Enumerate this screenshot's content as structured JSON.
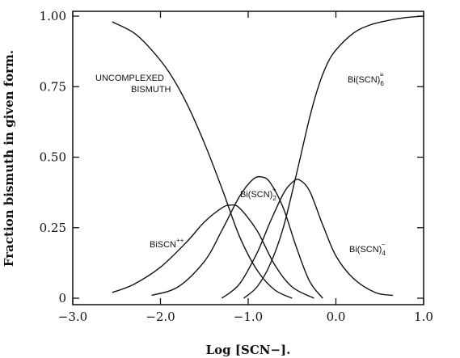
{
  "chart_data": {
    "type": "line",
    "xlabel": "Log [SCN−].",
    "ylabel": "Fraction bismuth in given form.",
    "xlim": [
      -3.0,
      1.0
    ],
    "ylim": [
      0,
      1.02
    ],
    "x_ticks": [
      {
        "value": -3.0,
        "label": "−3.0"
      },
      {
        "value": -2.0,
        "label": "−2.0"
      },
      {
        "value": -1.0,
        "label": "−1.0"
      },
      {
        "value": 0.0,
        "label": "0.0"
      },
      {
        "value": 1.0,
        "label": "1.0"
      }
    ],
    "y_ticks": [
      {
        "value": 0,
        "label": "0"
      },
      {
        "value": 0.25,
        "label": "0.25"
      },
      {
        "value": 0.5,
        "label": "0.50"
      },
      {
        "value": 0.75,
        "label": "0.75"
      },
      {
        "value": 1.0,
        "label": "1.00"
      }
    ],
    "series": [
      {
        "name": "UNCOMPLEXED BISMUTH",
        "x": [
          -2.55,
          -2.3,
          -2.1,
          -1.9,
          -1.7,
          -1.5,
          -1.3,
          -1.1,
          -0.9,
          -0.7,
          -0.5
        ],
        "y": [
          0.98,
          0.94,
          0.88,
          0.8,
          0.69,
          0.55,
          0.39,
          0.22,
          0.1,
          0.03,
          0.0
        ]
      },
      {
        "name": "BiSCN++",
        "x": [
          -2.55,
          -2.3,
          -2.0,
          -1.7,
          -1.5,
          -1.3,
          -1.2,
          -1.1,
          -0.9,
          -0.7,
          -0.5,
          -0.25
        ],
        "y": [
          0.02,
          0.05,
          0.11,
          0.2,
          0.27,
          0.32,
          0.33,
          0.32,
          0.24,
          0.12,
          0.04,
          0.0
        ]
      },
      {
        "name": "Bi(SCN)2+",
        "x": [
          -2.1,
          -1.8,
          -1.5,
          -1.3,
          -1.1,
          -0.95,
          -0.85,
          -0.75,
          -0.6,
          -0.45,
          -0.3,
          -0.15
        ],
        "y": [
          0.01,
          0.04,
          0.13,
          0.24,
          0.36,
          0.42,
          0.43,
          0.41,
          0.32,
          0.18,
          0.06,
          0.0
        ]
      },
      {
        "name": "Bi(SCN)4−",
        "x": [
          -1.3,
          -1.1,
          -0.9,
          -0.75,
          -0.6,
          -0.5,
          -0.42,
          -0.3,
          -0.15,
          0.0,
          0.2,
          0.45,
          0.65
        ],
        "y": [
          0.0,
          0.05,
          0.16,
          0.27,
          0.37,
          0.41,
          0.42,
          0.38,
          0.26,
          0.15,
          0.07,
          0.02,
          0.01
        ]
      },
      {
        "name": "Bi(SCN)6≡",
        "x": [
          -1.05,
          -0.9,
          -0.75,
          -0.6,
          -0.45,
          -0.3,
          -0.2,
          -0.1,
          0.0,
          0.2,
          0.4,
          0.6,
          0.8,
          1.0
        ],
        "y": [
          0.0,
          0.04,
          0.12,
          0.25,
          0.44,
          0.64,
          0.75,
          0.83,
          0.88,
          0.94,
          0.97,
          0.985,
          0.995,
          1.0
        ]
      }
    ],
    "annotations": [
      {
        "text": "UNCOMPLEXED",
        "series": 0
      },
      {
        "text": "BISMUTH",
        "series": 0
      },
      {
        "text": "BiSCN",
        "sup": "++",
        "series": 1
      },
      {
        "text": "Bi(SCN)",
        "sub": "2",
        "sup": "+",
        "series": 2
      },
      {
        "text": "Bi(SCN)",
        "sub": "4",
        "sup": "−",
        "series": 3
      },
      {
        "text": "Bi(SCN)",
        "sub": "6",
        "sup": "≡",
        "series": 4
      }
    ]
  }
}
